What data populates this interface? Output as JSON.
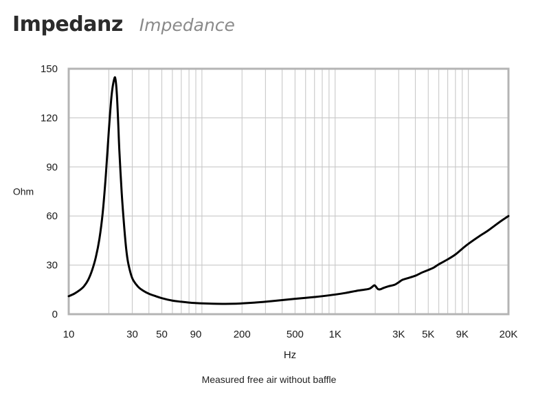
{
  "title": "Impedanz",
  "subtitle": "Impedance",
  "caption": "Measured free air without baffle",
  "chart_data": {
    "type": "line",
    "xscale": "log",
    "xlim": [
      10,
      20000
    ],
    "ylim": [
      0,
      150
    ],
    "xlabel": "Hz",
    "ylabel": "Ohm",
    "grid": true,
    "x_ticks": [
      10,
      30,
      50,
      90,
      200,
      500,
      1000,
      3000,
      5000,
      9000,
      20000
    ],
    "x_tick_labels": [
      "10",
      "30",
      "50",
      "90",
      "200",
      "500",
      "1K",
      "3K",
      "5K",
      "9K",
      "20K"
    ],
    "y_ticks": [
      0,
      30,
      60,
      90,
      120,
      150
    ],
    "y_tick_labels": [
      "0",
      "30",
      "60",
      "90",
      "120",
      "150"
    ],
    "line_color": "#000000",
    "grid_color": "#c8c8c8",
    "frame_color": "#b4b4b4",
    "series": [
      {
        "x": [
          10,
          11,
          12,
          13,
          14,
          15,
          16,
          17,
          18,
          19,
          20,
          21,
          22,
          22.5,
          23,
          23.5,
          24,
          25,
          26,
          27,
          28,
          30,
          33,
          36,
          40,
          45,
          50,
          60,
          70,
          80,
          90,
          100,
          120,
          150,
          180,
          200,
          250,
          300,
          400,
          500,
          600,
          700,
          800,
          1000,
          1200,
          1500,
          1800,
          1950,
          2000,
          2100,
          2200,
          2300,
          2500,
          2800,
          3000,
          3200,
          3500,
          4000,
          4500,
          5000,
          5500,
          6000,
          7000,
          8000,
          9000,
          10000,
          12000,
          14000,
          16000,
          18000,
          20000
        ],
        "y": [
          11,
          12.5,
          14.5,
          17,
          21,
          27,
          35,
          46,
          62,
          85,
          112,
          134,
          144,
          143,
          134,
          118,
          100,
          74,
          55,
          40,
          31,
          22,
          17,
          14.5,
          12.5,
          11,
          9.8,
          8.3,
          7.6,
          7.1,
          6.8,
          6.6,
          6.4,
          6.3,
          6.4,
          6.6,
          7.1,
          7.6,
          8.6,
          9.4,
          10,
          10.5,
          11,
          12,
          13,
          14.5,
          15.5,
          17.5,
          17.3,
          15.3,
          15.3,
          16,
          17,
          18,
          19.5,
          21,
          22,
          23.5,
          25.5,
          27,
          28.5,
          30.5,
          33.5,
          36.5,
          40,
          43,
          47.5,
          51,
          54.5,
          57.5,
          60
        ]
      }
    ]
  }
}
